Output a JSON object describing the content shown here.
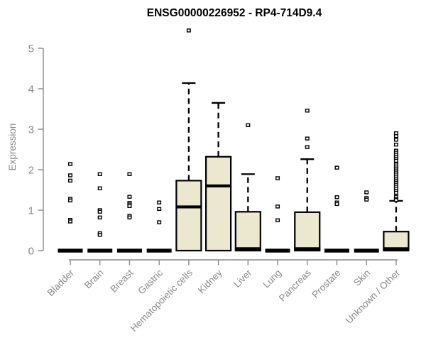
{
  "colors": {
    "background": "#ffffff",
    "box_fill": "#ece7cf",
    "box_stroke": "#000000",
    "median": "#000000",
    "flat_bar": "#000000",
    "outlier_stroke": "#000000",
    "outlier_fill": "#ffffff",
    "axis": "#898989",
    "tick_label": "#898989",
    "title": "#000000"
  },
  "chart_data": {
    "type": "boxplot",
    "title": "ENSG00000226952 - RP4-714D9.4",
    "xlabel": "",
    "ylabel": "Expression",
    "ylim": [
      0,
      5
    ],
    "yticks": [
      0,
      1,
      2,
      3,
      4,
      5
    ],
    "grid": false,
    "legend": false,
    "categories": [
      "Bladder",
      "Brain",
      "Breast",
      "Gastric",
      "Hematopoietic cells",
      "Kidney",
      "Liver",
      "Lung",
      "Pancreas",
      "Prostate",
      "Skin",
      "Unknown / Other"
    ],
    "series": [
      {
        "label": "Bladder",
        "q1": 0,
        "median": 0,
        "q3": 0,
        "whisker_low": 0,
        "whisker_high": 0,
        "outliers": [
          2.14,
          1.86,
          1.73,
          1.28,
          1.24,
          0.76,
          0.72
        ]
      },
      {
        "label": "Brain",
        "q1": 0,
        "median": 0,
        "q3": 0,
        "whisker_low": 0,
        "whisker_high": 0,
        "outliers": [
          1.89,
          1.54,
          1.0,
          0.96,
          0.82,
          0.43,
          0.39
        ]
      },
      {
        "label": "Breast",
        "q1": 0,
        "median": 0,
        "q3": 0,
        "whisker_low": 0,
        "whisker_high": 0,
        "outliers": [
          1.89,
          1.33,
          1.18,
          1.14,
          1.1,
          0.86,
          0.82
        ]
      },
      {
        "label": "Gastric",
        "q1": 0,
        "median": 0,
        "q3": 0,
        "whisker_low": 0,
        "whisker_high": 0,
        "outliers": [
          1.19,
          1.03,
          0.7
        ]
      },
      {
        "label": "Hematopoietic cells",
        "q1": 0,
        "median": 1.08,
        "q3": 1.73,
        "whisker_low": 0,
        "whisker_high": 4.14,
        "outliers": [
          5.44
        ]
      },
      {
        "label": "Kidney",
        "q1": 0,
        "median": 1.6,
        "q3": 2.32,
        "whisker_low": 0,
        "whisker_high": 3.65,
        "outliers": []
      },
      {
        "label": "Liver",
        "q1": 0,
        "median": 0,
        "q3": 0.96,
        "whisker_low": 0,
        "whisker_high": 1.89,
        "outliers": [
          3.1
        ]
      },
      {
        "label": "Lung",
        "q1": 0,
        "median": 0,
        "q3": 0,
        "whisker_low": 0,
        "whisker_high": 0,
        "outliers": [
          1.79,
          1.09,
          0.75
        ]
      },
      {
        "label": "Pancreas",
        "q1": 0,
        "median": 0,
        "q3": 0.95,
        "whisker_low": 0,
        "whisker_high": 2.26,
        "outliers": [
          3.46,
          2.77,
          2.56
        ]
      },
      {
        "label": "Prostate",
        "q1": 0,
        "median": 0,
        "q3": 0,
        "whisker_low": 0,
        "whisker_high": 0,
        "outliers": [
          2.05,
          1.32,
          1.19,
          1.15
        ]
      },
      {
        "label": "Skin",
        "q1": 0,
        "median": 0,
        "q3": 0,
        "whisker_low": 0,
        "whisker_high": 0,
        "outliers": [
          1.44,
          1.3,
          1.26
        ]
      },
      {
        "label": "Unknown / Other",
        "q1": 0,
        "median": 0,
        "q3": 0.47,
        "whisker_low": 0,
        "whisker_high": 1.23,
        "outliers": [
          2.9,
          2.83,
          2.74,
          2.62,
          2.47,
          2.42,
          2.37,
          2.32,
          2.27,
          2.22,
          2.13,
          2.08,
          2.03,
          1.98,
          1.93,
          1.88,
          1.83,
          1.78,
          1.73,
          1.68,
          1.63,
          1.58,
          1.53,
          1.48,
          1.43,
          1.33,
          1.28,
          1.25
        ]
      }
    ]
  }
}
